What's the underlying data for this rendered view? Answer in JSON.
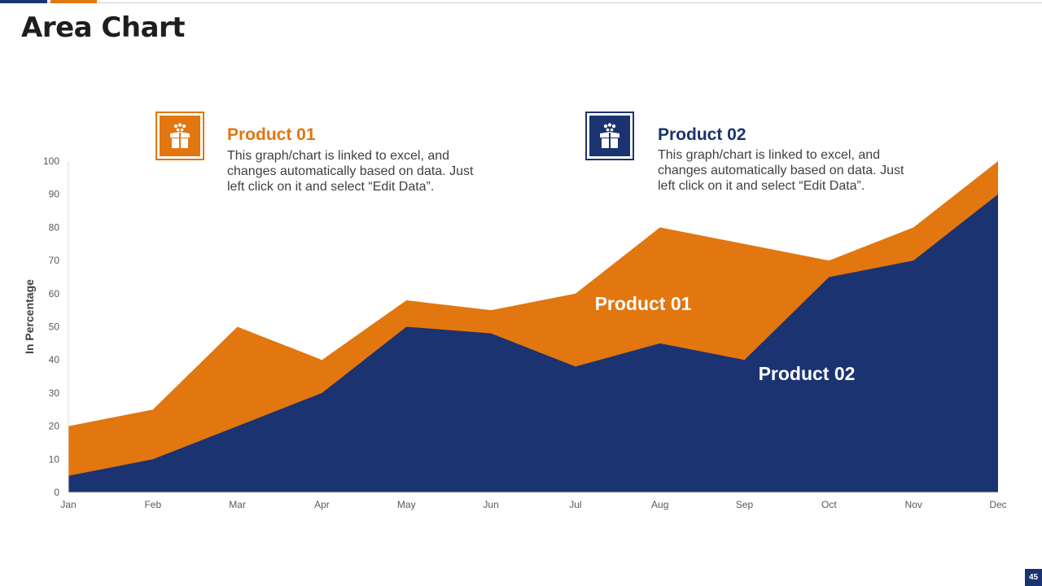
{
  "page": {
    "title": "Area Chart",
    "page_number": "45"
  },
  "colors": {
    "product01": "#E2760F",
    "product02": "#1B3370",
    "text": "#1E1E1E",
    "muted": "#404040",
    "axis": "#595959"
  },
  "legend": [
    {
      "title": "Product 01",
      "description": "This graph/chart is linked to excel, and changes automatically based on data. Just left click on it and select “Edit Data”.",
      "icon": "gift-box-icon"
    },
    {
      "title": "Product 02",
      "description": "This graph/chart is linked to excel, and changes automatically based on data. Just left click on it and select “Edit Data”.",
      "icon": "gift-box-icon"
    }
  ],
  "chart_data": {
    "type": "area",
    "stacked": false,
    "categories": [
      "Jan",
      "Feb",
      "Mar",
      "Apr",
      "May",
      "Jun",
      "Jul",
      "Aug",
      "Sep",
      "Oct",
      "Nov",
      "Dec"
    ],
    "series": [
      {
        "name": "Product 01",
        "values": [
          20,
          25,
          50,
          40,
          58,
          55,
          60,
          80,
          75,
          70,
          80,
          100
        ]
      },
      {
        "name": "Product 02",
        "values": [
          5,
          10,
          20,
          30,
          50,
          48,
          38,
          45,
          40,
          65,
          70,
          90
        ]
      }
    ],
    "ylabel": "In Percentage",
    "xlabel": "",
    "ylim": [
      0,
      100
    ],
    "yticks": [
      0,
      10,
      20,
      30,
      40,
      50,
      60,
      70,
      80,
      90,
      100
    ],
    "grid": false,
    "annotations": [
      "Product 01",
      "Product 02"
    ]
  }
}
